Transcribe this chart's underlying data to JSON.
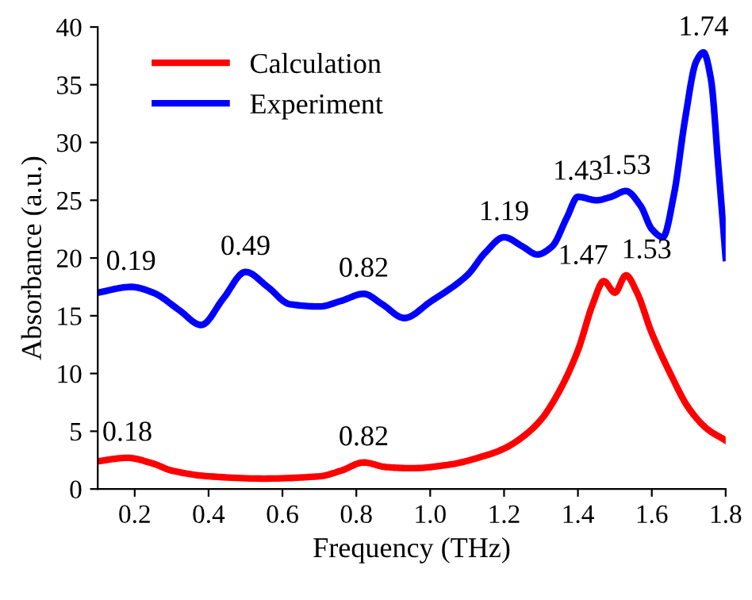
{
  "chart_data": {
    "type": "line",
    "xlabel": "Frequency (THz)",
    "ylabel": "Absorbance (a.u.)",
    "xlim": [
      0.1,
      1.8
    ],
    "xticks": [
      {
        "value": 0.2,
        "label": "0.2"
      },
      {
        "value": 0.4,
        "label": "0.4"
      },
      {
        "value": 0.6,
        "label": "0.6"
      },
      {
        "value": 0.8,
        "label": "0.8"
      },
      {
        "value": 1.0,
        "label": "1.0"
      },
      {
        "value": 1.2,
        "label": "1.2"
      },
      {
        "value": 1.4,
        "label": "1.4"
      },
      {
        "value": 1.6,
        "label": "1.6"
      },
      {
        "value": 1.8,
        "label": "1.8"
      }
    ],
    "ylim": [
      0,
      40
    ],
    "yticks": [
      0,
      5,
      10,
      15,
      20,
      25,
      30,
      35,
      40
    ],
    "grid": false,
    "legend": "top left",
    "marker": "none",
    "line_style": "solid",
    "series": [
      {
        "name": "Calculation",
        "color": "#ff0000",
        "x": [
          0.1,
          0.18,
          0.25,
          0.3,
          0.4,
          0.55,
          0.7,
          0.76,
          0.82,
          0.88,
          0.95,
          1.05,
          1.15,
          1.2,
          1.25,
          1.3,
          1.35,
          1.4,
          1.44,
          1.47,
          1.5,
          1.53,
          1.56,
          1.6,
          1.65,
          1.7,
          1.75,
          1.8
        ],
        "values": [
          2.4,
          2.7,
          2.2,
          1.6,
          1.1,
          0.9,
          1.1,
          1.6,
          2.3,
          1.9,
          1.8,
          2.1,
          2.9,
          3.5,
          4.5,
          6.0,
          8.5,
          12.0,
          16.0,
          18.0,
          17.0,
          18.5,
          17.0,
          13.5,
          10.0,
          7.0,
          5.2,
          4.2
        ]
      },
      {
        "name": "Experiment",
        "color": "#0000ff",
        "x": [
          0.1,
          0.19,
          0.25,
          0.32,
          0.38,
          0.44,
          0.5,
          0.56,
          0.62,
          0.7,
          0.76,
          0.82,
          0.87,
          0.93,
          1.0,
          1.1,
          1.15,
          1.2,
          1.25,
          1.29,
          1.33,
          1.37,
          1.4,
          1.45,
          1.49,
          1.53,
          1.57,
          1.6,
          1.63,
          1.66,
          1.69,
          1.72,
          1.74,
          1.76,
          1.78,
          1.8
        ],
        "values": [
          17.0,
          17.5,
          17.0,
          15.5,
          14.2,
          16.5,
          18.8,
          17.5,
          16.0,
          15.8,
          16.3,
          16.9,
          16.0,
          14.8,
          16.2,
          18.5,
          20.5,
          21.8,
          21.0,
          20.3,
          21.0,
          23.5,
          25.3,
          25.0,
          25.3,
          25.8,
          24.5,
          22.5,
          21.8,
          25.5,
          32.0,
          37.0,
          37.8,
          35.5,
          28.0,
          20.0
        ]
      }
    ],
    "annotations": [
      {
        "text": "0.18",
        "x": 0.18,
        "y": 2.7
      },
      {
        "text": "0.82",
        "x": 0.82,
        "y": 2.3
      },
      {
        "text": "1.47",
        "x": 1.47,
        "y": 18.0
      },
      {
        "text": "1.53",
        "x": 1.53,
        "y": 18.5
      },
      {
        "text": "0.19",
        "x": 0.19,
        "y": 17.5
      },
      {
        "text": "0.49",
        "x": 0.5,
        "y": 18.8
      },
      {
        "text": "0.82",
        "x": 0.82,
        "y": 16.9
      },
      {
        "text": "1.19",
        "x": 1.2,
        "y": 21.8
      },
      {
        "text": "1.43",
        "x": 1.4,
        "y": 25.3
      },
      {
        "text": "1.53",
        "x": 1.53,
        "y": 25.8
      },
      {
        "text": "1.74",
        "x": 1.74,
        "y": 37.8
      }
    ]
  }
}
